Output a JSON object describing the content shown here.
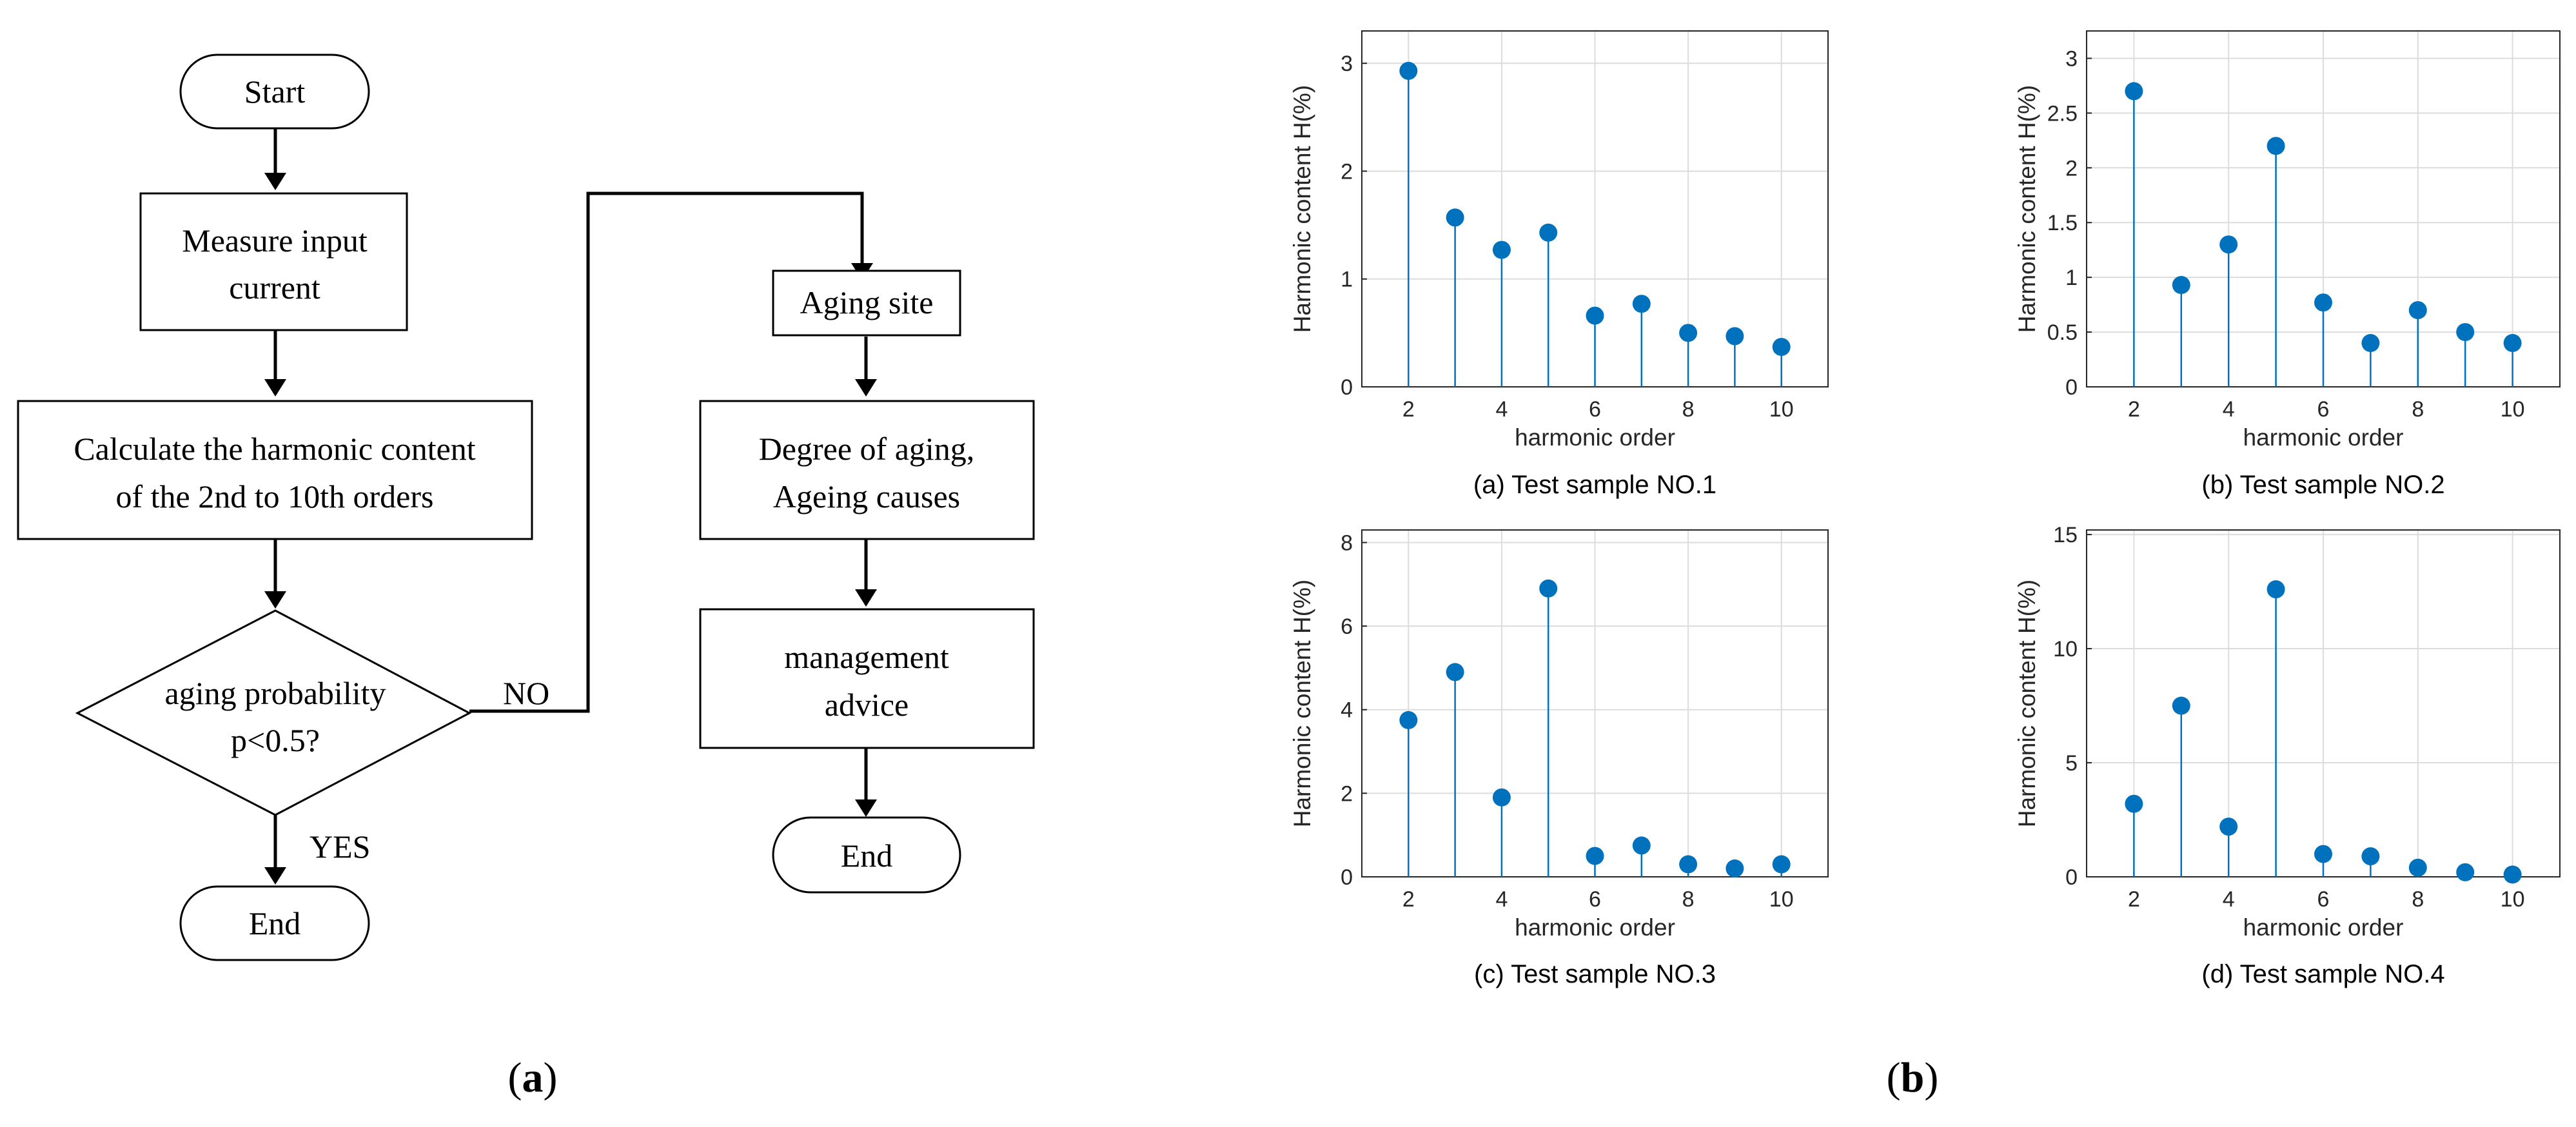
{
  "flowchart": {
    "start_left": "Start",
    "measure": [
      "Measure input",
      "current"
    ],
    "calculate": [
      "Calculate the harmonic content",
      "of the 2nd to 10th orders"
    ],
    "decision": [
      "aging probability",
      "p<0.5?"
    ],
    "no_label": "NO",
    "yes_label": "YES",
    "end_left": "End",
    "aging_site": "Aging site",
    "degree": [
      "Degree of aging,",
      "Ageing causes"
    ],
    "management": [
      "management",
      "advice"
    ],
    "end_right": "End"
  },
  "panel_labels": {
    "a": [
      "(",
      "a",
      ")"
    ],
    "b": [
      "(",
      "b",
      ")"
    ]
  },
  "colors": {
    "stem": "#0072BD",
    "grid": "#dcdcdc",
    "axis": "#262626"
  },
  "chart_data": [
    {
      "type": "stem",
      "caption": "(a) Test sample NO.1",
      "xlabel": "harmonic order",
      "ylabel": "Harmonic content H(%)",
      "x": [
        2,
        3,
        4,
        5,
        6,
        7,
        8,
        9,
        10
      ],
      "values": [
        2.93,
        1.57,
        1.27,
        1.43,
        0.66,
        0.77,
        0.5,
        0.47,
        0.37
      ],
      "xlim": [
        1,
        11
      ],
      "ylim": [
        0,
        3.3
      ],
      "xticks": [
        2,
        4,
        6,
        8,
        10
      ],
      "yticks": [
        0,
        1,
        2,
        3
      ],
      "yticklabels": [
        "0",
        "1",
        "2",
        "3"
      ],
      "grid": true
    },
    {
      "type": "stem",
      "caption": "(b) Test sample NO.2",
      "xlabel": "harmonic order",
      "ylabel": "Harmonic content H(%)",
      "x": [
        2,
        3,
        4,
        5,
        6,
        7,
        8,
        9,
        10
      ],
      "values": [
        2.7,
        0.93,
        1.3,
        2.2,
        0.77,
        0.4,
        0.7,
        0.5,
        0.4
      ],
      "xlim": [
        1,
        11
      ],
      "ylim": [
        0,
        3.25
      ],
      "xticks": [
        2,
        4,
        6,
        8,
        10
      ],
      "yticks": [
        0,
        0.5,
        1,
        1.5,
        2,
        2.5,
        3
      ],
      "yticklabels": [
        "0",
        "0.5",
        "1",
        "1.5",
        "2",
        "2.5",
        "3"
      ],
      "grid": true
    },
    {
      "type": "stem",
      "caption": "(c) Test sample NO.3",
      "xlabel": "harmonic order",
      "ylabel": "Harmonic content H(%)",
      "x": [
        2,
        3,
        4,
        5,
        6,
        7,
        8,
        9,
        10
      ],
      "values": [
        3.75,
        4.9,
        1.9,
        6.9,
        0.5,
        0.75,
        0.3,
        0.2,
        0.3
      ],
      "xlim": [
        1,
        11
      ],
      "ylim": [
        0,
        8.3
      ],
      "xticks": [
        2,
        4,
        6,
        8,
        10
      ],
      "yticks": [
        0,
        2,
        4,
        6,
        8
      ],
      "yticklabels": [
        "0",
        "2",
        "4",
        "6",
        "8"
      ],
      "grid": true
    },
    {
      "type": "stem",
      "caption": "(d) Test sample NO.4",
      "xlabel": "harmonic order",
      "ylabel": "Harmonic content H(%)",
      "x": [
        2,
        3,
        4,
        5,
        6,
        7,
        8,
        9,
        10
      ],
      "values": [
        3.2,
        7.5,
        2.2,
        12.6,
        1.0,
        0.9,
        0.4,
        0.2,
        0.1
      ],
      "xlim": [
        1,
        11
      ],
      "ylim": [
        0,
        15.2
      ],
      "xticks": [
        2,
        4,
        6,
        8,
        10
      ],
      "yticks": [
        0,
        5,
        10,
        15
      ],
      "yticklabels": [
        "0",
        "5",
        "10",
        "15"
      ],
      "grid": true
    }
  ]
}
